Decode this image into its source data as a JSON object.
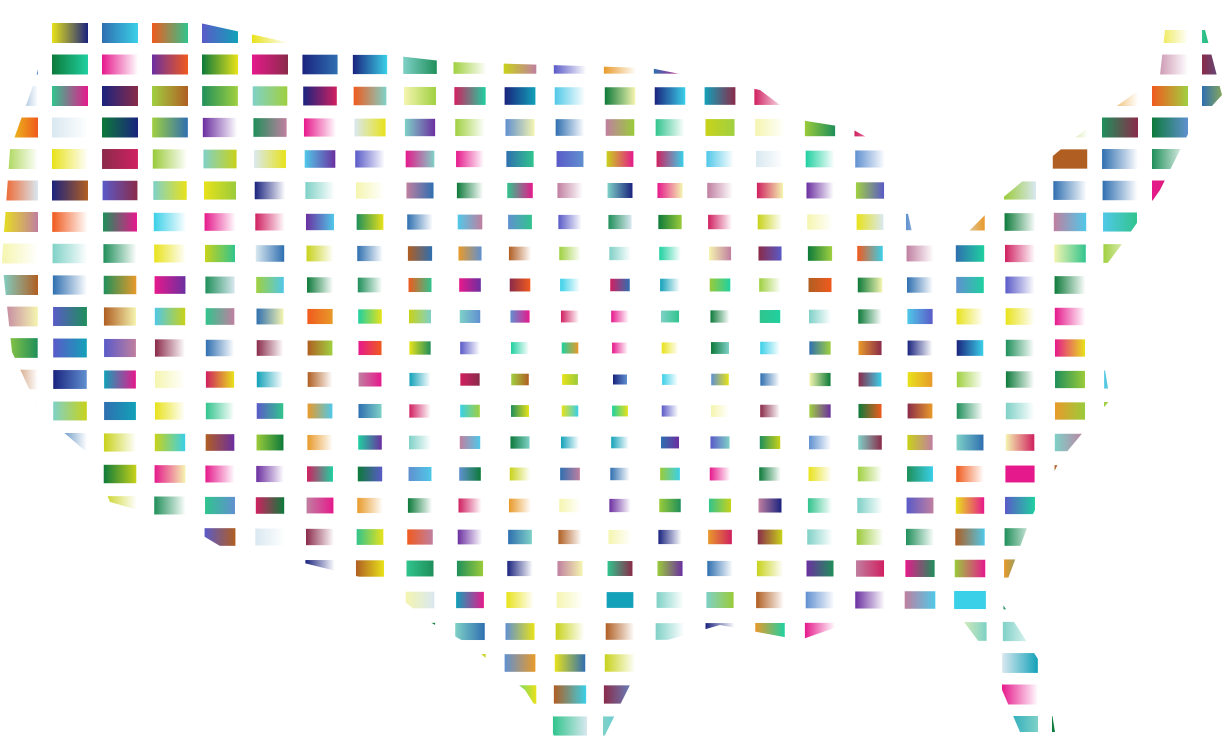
{
  "artwork": {
    "subject": "map-of-united-states-gradient-tiles",
    "background": "#ffffff",
    "palette": [
      "#e6198c",
      "#12a1b8",
      "#2f6fb0",
      "#1f8f5a",
      "#c8d21a",
      "#6b2fa0",
      "#e8e21a",
      "#31c48d",
      "#d9e8f0",
      "#8a2b4a",
      "#f05a1e",
      "#1a237e",
      "#7fd1c7",
      "#b05e22",
      "#50c8e8",
      "#9acb3a",
      "#1fd0a0",
      "#5a5ac8",
      "#c07fa0",
      "#0d7a3a",
      "#f5f5b0",
      "#e89a2a",
      "#3ad0e8",
      "#a0d040",
      "#6090d0",
      "#d02060"
    ]
  }
}
